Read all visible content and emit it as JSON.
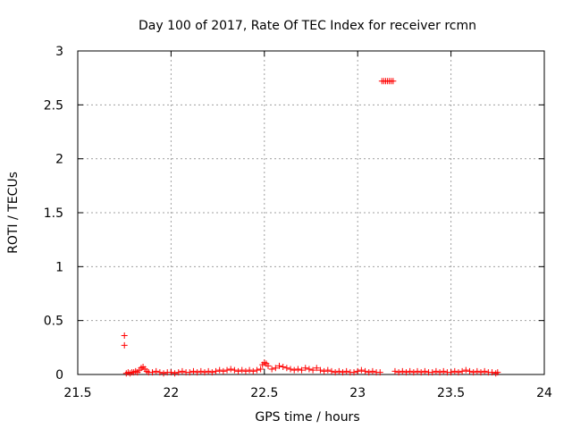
{
  "chart_data": {
    "type": "scatter",
    "title": "Day 100 of 2017, Rate Of TEC Index for receiver rcmn",
    "xlabel": "GPS time / hours",
    "ylabel": "ROTI / TECUs",
    "xlim": [
      21.5,
      24
    ],
    "ylim": [
      0,
      3
    ],
    "x_ticks": [
      21.5,
      22,
      22.5,
      23,
      23.5,
      24
    ],
    "x_tick_labels": [
      "21.5",
      "22",
      "22.5",
      "23",
      "23.5",
      "24"
    ],
    "y_ticks": [
      0,
      0.5,
      1,
      1.5,
      2,
      2.5,
      3
    ],
    "y_tick_labels": [
      "0",
      "0.5",
      "1",
      "1.5",
      "2",
      "2.5",
      "3"
    ],
    "grid": true,
    "marker": "plus",
    "series_color": "#ff0000",
    "series": [
      {
        "x": [
          21.75,
          21.75,
          21.76,
          21.77,
          21.78,
          21.79,
          21.8,
          21.81,
          21.82,
          21.83,
          21.84,
          21.85,
          21.86,
          21.87,
          21.88,
          21.9,
          21.92,
          21.94,
          21.96,
          21.98,
          22.0,
          22.02,
          22.04,
          22.06,
          22.08,
          22.1,
          22.12,
          22.14,
          22.16,
          22.18,
          22.2,
          22.22,
          22.24,
          22.26,
          22.28,
          22.3,
          22.32,
          22.34,
          22.36,
          22.38,
          22.4,
          22.42,
          22.44,
          22.46,
          22.48,
          22.49,
          22.5,
          22.51,
          22.52,
          22.54,
          22.56,
          22.58,
          22.6,
          22.62,
          22.64,
          22.66,
          22.68,
          22.7,
          22.72,
          22.74,
          22.76,
          22.78,
          22.8,
          22.82,
          22.84,
          22.86,
          22.88,
          22.9,
          22.92,
          22.94,
          22.96,
          22.98,
          23.0,
          23.02,
          23.04,
          23.06,
          23.08,
          23.1,
          23.12,
          23.13,
          23.14,
          23.15,
          23.16,
          23.17,
          23.18,
          23.19,
          23.2,
          23.22,
          23.24,
          23.26,
          23.28,
          23.3,
          23.32,
          23.34,
          23.36,
          23.38,
          23.4,
          23.42,
          23.44,
          23.46,
          23.48,
          23.5,
          23.52,
          23.54,
          23.56,
          23.58,
          23.6,
          23.62,
          23.64,
          23.66,
          23.68,
          23.7,
          23.72,
          23.74,
          23.75
        ],
        "y": [
          0.36,
          0.27,
          0.01,
          0.02,
          0.01,
          0.02,
          0.02,
          0.03,
          0.02,
          0.04,
          0.06,
          0.07,
          0.05,
          0.03,
          0.02,
          0.02,
          0.03,
          0.02,
          0.01,
          0.02,
          0.02,
          0.01,
          0.02,
          0.03,
          0.02,
          0.02,
          0.03,
          0.02,
          0.03,
          0.02,
          0.03,
          0.02,
          0.03,
          0.04,
          0.03,
          0.04,
          0.05,
          0.04,
          0.03,
          0.04,
          0.03,
          0.04,
          0.03,
          0.04,
          0.05,
          0.09,
          0.11,
          0.1,
          0.08,
          0.05,
          0.06,
          0.08,
          0.07,
          0.06,
          0.05,
          0.04,
          0.05,
          0.04,
          0.06,
          0.05,
          0.04,
          0.06,
          0.04,
          0.03,
          0.04,
          0.03,
          0.02,
          0.03,
          0.02,
          0.03,
          0.02,
          0.02,
          0.03,
          0.04,
          0.03,
          0.02,
          0.03,
          0.02,
          0.02,
          2.72,
          2.72,
          2.72,
          2.72,
          2.72,
          2.72,
          2.72,
          0.03,
          0.02,
          0.03,
          0.02,
          0.03,
          0.02,
          0.03,
          0.02,
          0.03,
          0.02,
          0.02,
          0.03,
          0.02,
          0.03,
          0.02,
          0.02,
          0.03,
          0.02,
          0.03,
          0.04,
          0.03,
          0.02,
          0.03,
          0.02,
          0.03,
          0.02,
          0.02,
          0.01,
          0.02
        ]
      }
    ]
  }
}
